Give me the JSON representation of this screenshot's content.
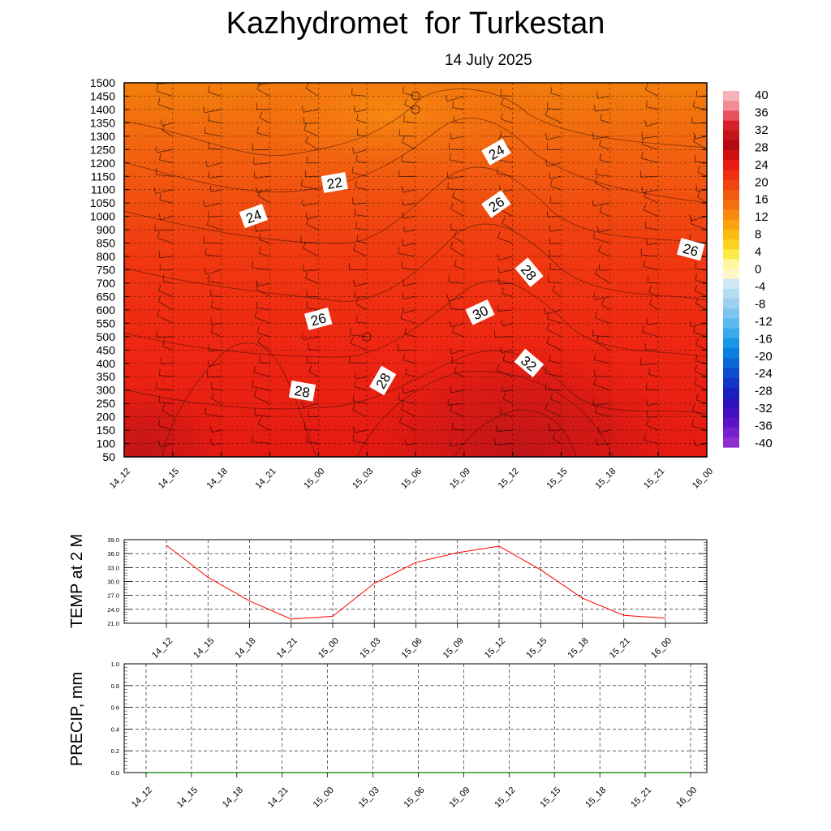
{
  "title": "Kazhydromet  for Turkestan",
  "subtitle": "14 July 2025",
  "chart_data": [
    {
      "type": "heatmap",
      "description_axis": "time vs pressure-level height",
      "x_tick_labels": [
        "14_12",
        "14_15",
        "14_18",
        "14_21",
        "15_00",
        "15_03",
        "15_06",
        "15_09",
        "15_12",
        "15_15",
        "15_18",
        "15_21",
        "16_00"
      ],
      "y_tick_labels": [
        "50",
        "100",
        "150",
        "200",
        "250",
        "300",
        "350",
        "400",
        "450",
        "500",
        "550",
        "600",
        "650",
        "700",
        "750",
        "800",
        "850",
        "900",
        "1000",
        "1050",
        "1100",
        "1150",
        "1200",
        "1250",
        "1300",
        "1350",
        "1400",
        "1450",
        "1500"
      ],
      "colorbar_labels": [
        "40",
        "36",
        "32",
        "28",
        "24",
        "20",
        "16",
        "12",
        "8",
        "4",
        "0",
        "-4",
        "-8",
        "-12",
        "-16",
        "-20",
        "-24",
        "-28",
        "-32",
        "-36",
        "-40"
      ],
      "colorbar_range": [
        -40,
        40
      ],
      "contour_labels": [
        {
          "text": "22",
          "x": "15_01",
          "y": 1125
        },
        {
          "text": "24",
          "x": "14_20",
          "y": 1000
        },
        {
          "text": "24",
          "x": "15_11",
          "y": 1240
        },
        {
          "text": "26",
          "x": "15_11",
          "y": 1045
        },
        {
          "text": "26",
          "x": "15_23",
          "y": 825
        },
        {
          "text": "28",
          "x": "15_13",
          "y": 740
        },
        {
          "text": "30",
          "x": "15_10",
          "y": 590
        },
        {
          "text": "26",
          "x": "15_00",
          "y": 565
        },
        {
          "text": "32",
          "x": "15_13",
          "y": 400
        },
        {
          "text": "28",
          "x": "15_04",
          "y": 335
        },
        {
          "text": "28",
          "x": "14_23",
          "y": 295
        }
      ],
      "colors": {
        "cool_top": "#f07a0a",
        "mid": "#f03410",
        "warm": "#e61a12",
        "hot": "#c8141a"
      }
    },
    {
      "type": "line",
      "ylabel": "TEMP at 2 M",
      "ylim": [
        21.0,
        39.0
      ],
      "y_tick_labels": [
        "39.0",
        "36.0",
        "33.0",
        "30.0",
        "27.0",
        "24.0",
        "21.0"
      ],
      "categories": [
        "14_12",
        "14_15",
        "14_18",
        "14_21",
        "15_00",
        "15_03",
        "15_06",
        "15_09",
        "15_12",
        "15_15",
        "15_18",
        "15_21",
        "16_00"
      ],
      "values": [
        37.8,
        30.9,
        25.8,
        21.9,
        22.5,
        29.6,
        34.1,
        36.2,
        37.6,
        32.5,
        26.4,
        22.7,
        22.1
      ],
      "color": "#ff0000"
    },
    {
      "type": "line",
      "ylabel": "PRECIP, mm",
      "ylim": [
        0.0,
        1.0
      ],
      "y_tick_labels": [
        "1.0",
        "0.8",
        "0.6",
        "0.4",
        "0.2",
        "0.0"
      ],
      "categories": [
        "14_12",
        "14_15",
        "14_18",
        "14_21",
        "15_00",
        "15_03",
        "15_06",
        "15_09",
        "15_12",
        "15_15",
        "15_18",
        "15_21",
        "16_00"
      ],
      "values": [
        0,
        0,
        0,
        0,
        0,
        0,
        0,
        0,
        0,
        0,
        0,
        0,
        0
      ],
      "color": "#008000"
    }
  ]
}
